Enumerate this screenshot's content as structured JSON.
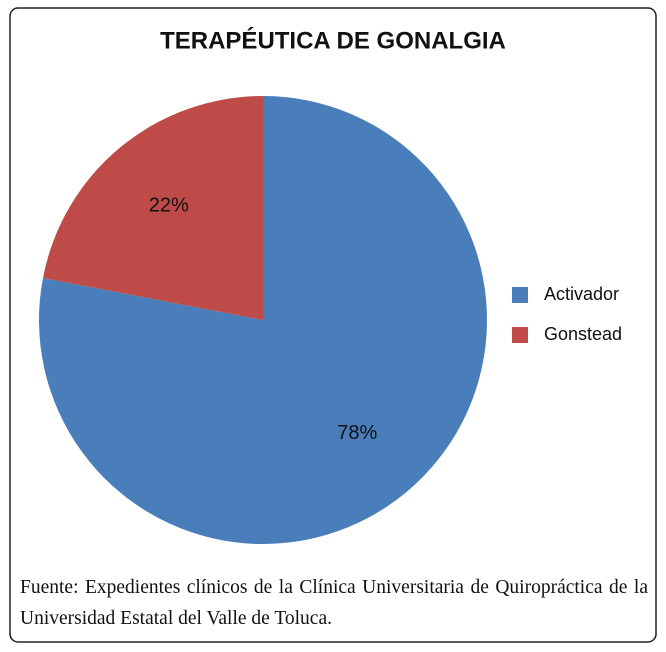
{
  "chart_data": {
    "type": "pie",
    "title": "TERAPÉUTICA DE GONALGIA",
    "categories": [
      "Activador",
      "Gonstead"
    ],
    "values": [
      78,
      22
    ],
    "value_labels": [
      "78%",
      "22%"
    ],
    "colors": [
      "#4a7ebb",
      "#be4b48"
    ],
    "legend": "right",
    "source": "Fuente: Expedientes clínicos de la Clínica Universitaria de Quiropráctica de la Universidad Estatal del Valle de Toluca."
  }
}
